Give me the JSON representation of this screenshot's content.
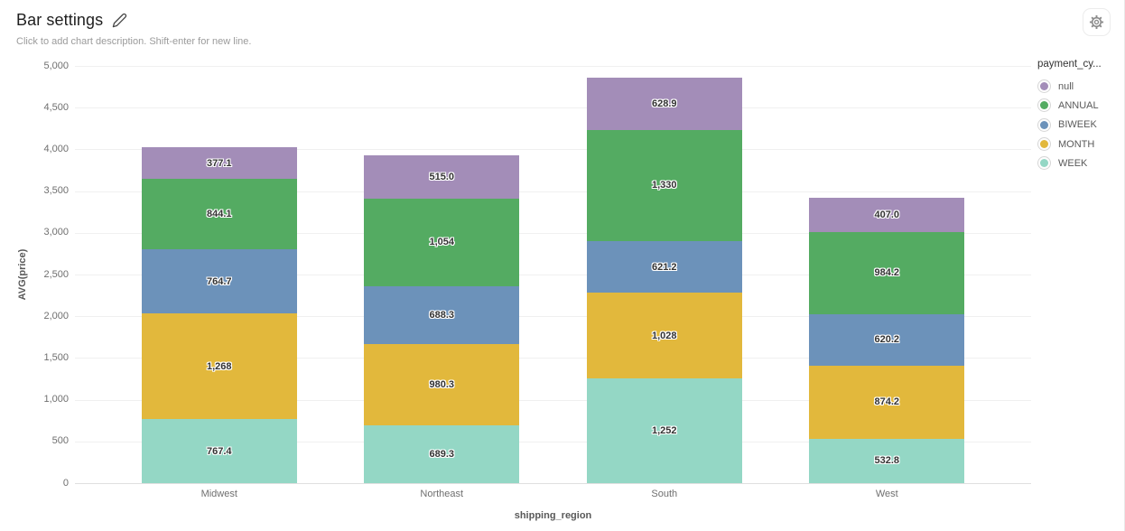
{
  "header": {
    "title": "Bar settings",
    "subtitle": "Click to add chart description. Shift-enter for new line."
  },
  "chart_data": {
    "type": "bar",
    "stacked": true,
    "title": "Bar settings",
    "xlabel": "shipping_region",
    "ylabel": "AVG(price)",
    "ylim": [
      0,
      5000
    ],
    "ytick_step": 500,
    "grid": true,
    "legend_position": "right",
    "legend_title": "payment_cy...",
    "categories": [
      "Midwest",
      "Northeast",
      "South",
      "West"
    ],
    "series": [
      {
        "name": "WEEK",
        "color": "#94d7c5",
        "values": [
          767.4,
          689.3,
          1252,
          532.8
        ],
        "labels": [
          "767.4",
          "689.3",
          "1,252",
          "532.8"
        ]
      },
      {
        "name": "MONTH",
        "color": "#e2b83c",
        "values": [
          1268,
          980.3,
          1028,
          874.2
        ],
        "labels": [
          "1,268",
          "980.3",
          "1,028",
          "874.2"
        ]
      },
      {
        "name": "BIWEEK",
        "color": "#6c92ba",
        "values": [
          764.7,
          688.3,
          621.2,
          620.2
        ],
        "labels": [
          "764.7",
          "688.3",
          "621.2",
          "620.2"
        ]
      },
      {
        "name": "ANNUAL",
        "color": "#54ab62",
        "values": [
          844.1,
          1054,
          1330,
          984.2
        ],
        "labels": [
          "844.1",
          "1,054",
          "1,330",
          "984.2"
        ]
      },
      {
        "name": "null",
        "color": "#a38db8",
        "values": [
          377.1,
          515.0,
          628.9,
          407.0
        ],
        "labels": [
          "377.1",
          "515.0",
          "628.9",
          "407.0"
        ]
      }
    ],
    "bar_totals": [
      4021.3,
      3926.9,
      4860.1,
      3418.4
    ]
  }
}
